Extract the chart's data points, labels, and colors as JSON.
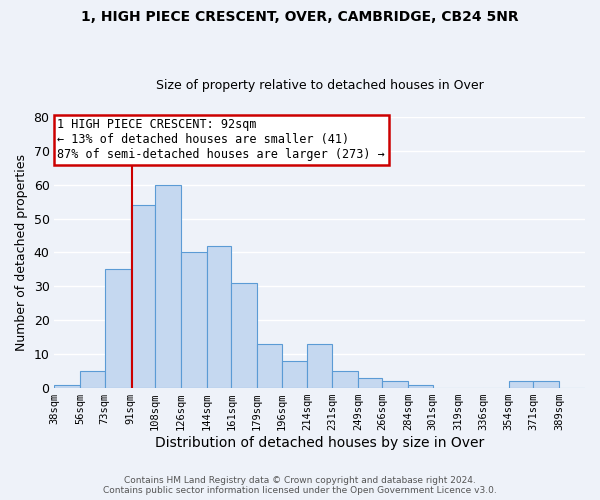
{
  "title": "1, HIGH PIECE CRESCENT, OVER, CAMBRIDGE, CB24 5NR",
  "subtitle": "Size of property relative to detached houses in Over",
  "xlabel": "Distribution of detached houses by size in Over",
  "ylabel": "Number of detached properties",
  "bin_labels": [
    "38sqm",
    "56sqm",
    "73sqm",
    "91sqm",
    "108sqm",
    "126sqm",
    "144sqm",
    "161sqm",
    "179sqm",
    "196sqm",
    "214sqm",
    "231sqm",
    "249sqm",
    "266sqm",
    "284sqm",
    "301sqm",
    "319sqm",
    "336sqm",
    "354sqm",
    "371sqm",
    "389sqm"
  ],
  "bar_heights": [
    1,
    5,
    35,
    54,
    60,
    40,
    42,
    31,
    13,
    8,
    13,
    5,
    3,
    2,
    1,
    0,
    0,
    0,
    2,
    2,
    0
  ],
  "bar_color": "#c5d8f0",
  "bar_edge_color": "#5b9bd5",
  "vline_color": "#cc0000",
  "vline_x": 92,
  "ylim": [
    0,
    80
  ],
  "yticks": [
    0,
    10,
    20,
    30,
    40,
    50,
    60,
    70,
    80
  ],
  "annotation_line1": "1 HIGH PIECE CRESCENT: 92sqm",
  "annotation_line2": "← 13% of detached houses are smaller (41)",
  "annotation_line3": "87% of semi-detached houses are larger (273) →",
  "annotation_box_color": "#ffffff",
  "annotation_box_edge": "#cc0000",
  "footer_line1": "Contains HM Land Registry data © Crown copyright and database right 2024.",
  "footer_line2": "Contains public sector information licensed under the Open Government Licence v3.0.",
  "background_color": "#eef2f9",
  "grid_color": "#ffffff",
  "bin_edges": [
    38,
    56,
    73,
    91,
    108,
    126,
    144,
    161,
    179,
    196,
    214,
    231,
    249,
    266,
    284,
    301,
    319,
    336,
    354,
    371,
    389,
    407
  ]
}
